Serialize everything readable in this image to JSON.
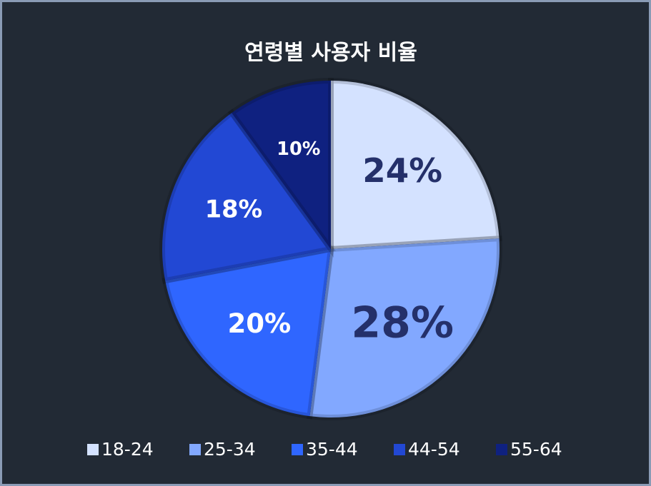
{
  "chart_data": {
    "type": "pie",
    "title": "연령별 사용자 비율",
    "categories": [
      "18-24",
      "25-34",
      "35-44",
      "44-54",
      "55-64"
    ],
    "values": [
      24,
      28,
      20,
      18,
      10
    ],
    "value_labels": [
      "24%",
      "28%",
      "20%",
      "18%",
      "10%"
    ],
    "colors": [
      "#d4e2ff",
      "#82a8ff",
      "#2f66ff",
      "#2248d4",
      "#0f2180"
    ],
    "legend": "bottom"
  }
}
